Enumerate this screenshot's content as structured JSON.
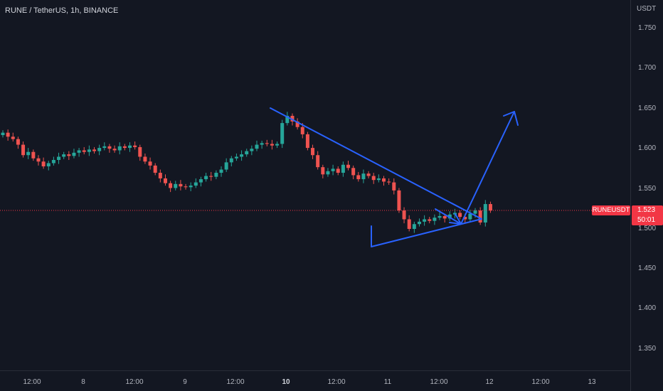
{
  "chart_title": "RUNE / TetherUS, 1h, BINANCE",
  "colors": {
    "background": "#131722",
    "up": "#26a69a",
    "down": "#ef5350",
    "drawing": "#2962ff",
    "price_line": "#f23645",
    "axis_text": "#b2b5be"
  },
  "price_label": {
    "symbol": "RUNEUSDT",
    "price": "1.523",
    "countdown": "50:01"
  },
  "chart_data": {
    "type": "candlestick",
    "currency": "USDT",
    "y_ticks": [
      "1.750",
      "1.700",
      "1.650",
      "1.600",
      "1.550",
      "1.500",
      "1.450",
      "1.400",
      "1.350"
    ],
    "x_ticks": [
      {
        "label": "12:00",
        "bold": false
      },
      {
        "label": "8",
        "bold": false
      },
      {
        "label": "12:00",
        "bold": false
      },
      {
        "label": "9",
        "bold": false
      },
      {
        "label": "12:00",
        "bold": false
      },
      {
        "label": "10",
        "bold": true
      },
      {
        "label": "12:00",
        "bold": false
      },
      {
        "label": "11",
        "bold": false
      },
      {
        "label": "12:00",
        "bold": false
      },
      {
        "label": "12",
        "bold": false
      },
      {
        "label": "12:00",
        "bold": false
      },
      {
        "label": "13",
        "bold": false
      }
    ],
    "ylim": [
      1.31,
      1.77
    ],
    "grid": false,
    "current_price": 1.523,
    "close_path": [
      1.62,
      1.615,
      1.612,
      1.605,
      1.592,
      1.596,
      1.588,
      1.584,
      1.578,
      1.582,
      1.586,
      1.59,
      1.593,
      1.591,
      1.595,
      1.598,
      1.596,
      1.599,
      1.597,
      1.601,
      1.603,
      1.6,
      1.598,
      1.603,
      1.601,
      1.604,
      1.602,
      1.59,
      1.584,
      1.579,
      1.57,
      1.563,
      1.557,
      1.551,
      1.556,
      1.553,
      1.552,
      1.554,
      1.558,
      1.562,
      1.566,
      1.565,
      1.57,
      1.574,
      1.583,
      1.588,
      1.59,
      1.593,
      1.597,
      1.6,
      1.605,
      1.607,
      1.606,
      1.604,
      1.606,
      1.632,
      1.641,
      1.634,
      1.627,
      1.618,
      1.601,
      1.592,
      1.577,
      1.568,
      1.572,
      1.575,
      1.57,
      1.58,
      1.576,
      1.567,
      1.562,
      1.569,
      1.566,
      1.561,
      1.563,
      1.559,
      1.558,
      1.548,
      1.523,
      1.512,
      1.5,
      1.506,
      1.509,
      1.512,
      1.51,
      1.514,
      1.516,
      1.513,
      1.518,
      1.52,
      1.515,
      1.512,
      1.519,
      1.523,
      1.508,
      1.531,
      1.523
    ]
  },
  "drawings": [
    {
      "type": "line",
      "from": [
        1.65,
        "Sep 9 ~16:00"
      ],
      "to": [
        1.512,
        "Sep 11 ~21:00"
      ]
    },
    {
      "type": "line",
      "from": [
        1.477,
        "Sep 10 ~20:00"
      ],
      "to": [
        1.512,
        "Sep 11 ~21:00"
      ]
    },
    {
      "type": "line",
      "from": [
        1.477,
        "Sep 10 ~20:00"
      ],
      "to": [
        1.496,
        "Sep 10 ~20:00"
      ]
    },
    {
      "type": "arrow",
      "from": [
        1.525,
        "Sep 11 ~12:00"
      ],
      "to": [
        1.505,
        "Sep 11 ~18:00"
      ]
    },
    {
      "type": "arrow",
      "from": [
        1.505,
        "Sep 11 ~18:00"
      ],
      "to": [
        1.65,
        "Sep 12 ~09:00"
      ]
    }
  ]
}
